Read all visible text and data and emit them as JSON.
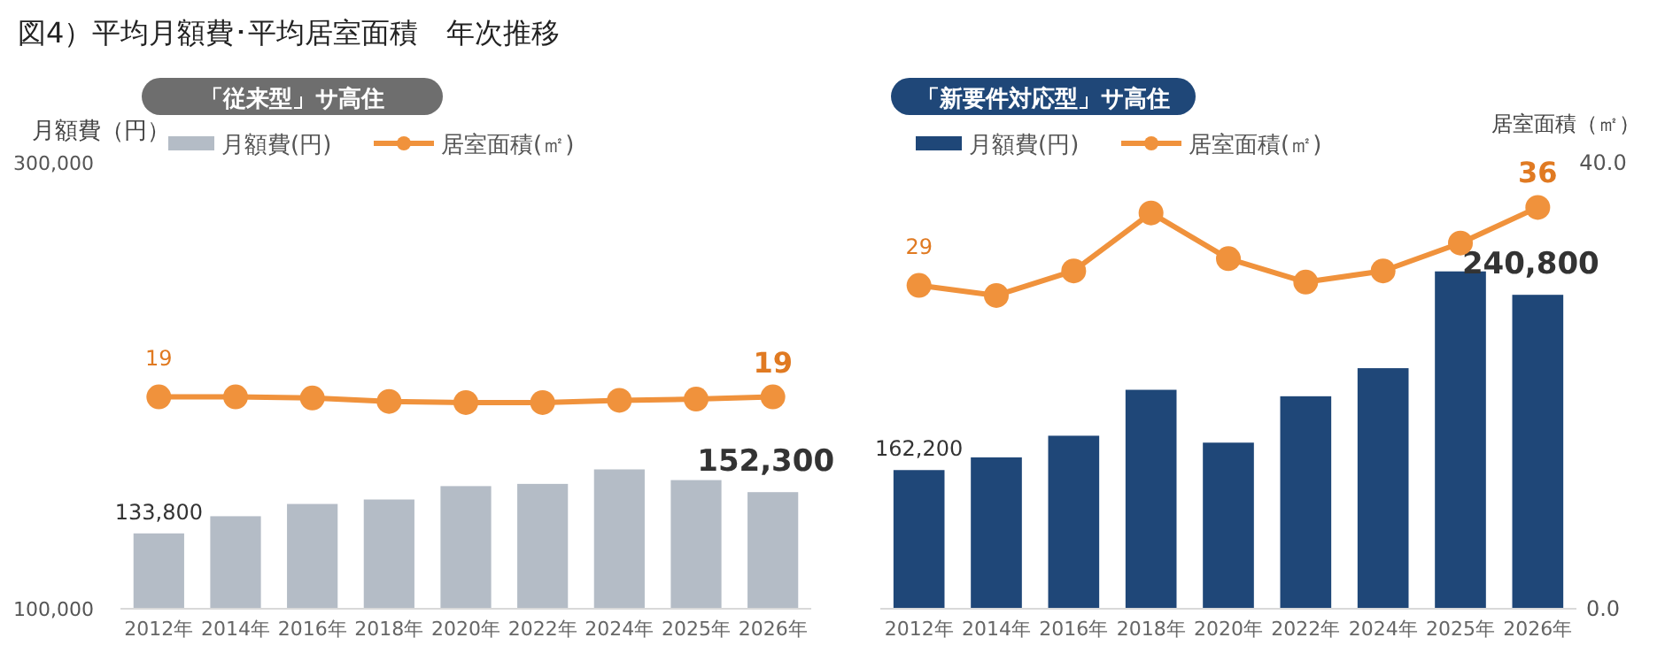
{
  "chart_data": [
    {
      "type": "bar",
      "title": "図4）平均月額費･平均居室面積　年次推移",
      "subtitle": "「従来型」サ高住",
      "ylabel": "月額費（円）",
      "categories": [
        "2012年",
        "2014年",
        "2016年",
        "2018年",
        "2020年",
        "2022年",
        "2024年",
        "2025年",
        "2026年"
      ],
      "ylim": [
        100000,
        300000
      ],
      "yticks": [
        {
          "value": 100000,
          "label": "100,000"
        },
        {
          "value": 300000,
          "label": "300,000"
        }
      ],
      "y2lim": [
        0,
        40
      ],
      "legend": "top",
      "marker": "circle",
      "series": [
        {
          "name": "月額費(円)",
          "type": "bar",
          "color": "#b4bcc6",
          "values": [
            133800,
            141500,
            147000,
            149000,
            155000,
            156000,
            162500,
            157700,
            152300
          ],
          "value_labels": [
            "133,800",
            null,
            null,
            null,
            null,
            null,
            null,
            null,
            "152,300"
          ]
        },
        {
          "name": "居室面積(㎡)",
          "type": "line",
          "axis": "y2",
          "color": "#f0923c",
          "values": [
            19,
            19.0,
            18.9,
            18.6,
            18.5,
            18.5,
            18.7,
            18.8,
            19
          ],
          "value_labels": [
            "19",
            null,
            null,
            null,
            null,
            null,
            null,
            null,
            "19"
          ]
        }
      ]
    },
    {
      "type": "bar",
      "subtitle": "「新要件対応型」サ高住",
      "y2label": "居室面積（㎡）",
      "categories": [
        "2012年",
        "2014年",
        "2016年",
        "2018年",
        "2020年",
        "2022年",
        "2024年",
        "2025年",
        "2026年"
      ],
      "ylim": [
        100000,
        300000
      ],
      "y2lim": [
        0,
        40
      ],
      "y2ticks": [
        {
          "value": 0,
          "label": "0.0"
        },
        {
          "value": 40,
          "label": "40.0"
        }
      ],
      "tick_labels": [
        "x",
        "y2"
      ],
      "legend": "top",
      "marker": "circle",
      "series": [
        {
          "name": "月額費(円)",
          "type": "bar",
          "color": "#1f4778",
          "values": [
            162200,
            167900,
            177600,
            198200,
            174500,
            195300,
            207900,
            251300,
            240800
          ],
          "value_labels": [
            "162,200",
            null,
            null,
            null,
            null,
            null,
            null,
            null,
            "240,800"
          ]
        },
        {
          "name": "居室面積(㎡)",
          "type": "line",
          "axis": "y2",
          "color": "#f0923c",
          "values": [
            29,
            28.1,
            30.3,
            35.5,
            31.4,
            29.3,
            30.3,
            32.8,
            36
          ],
          "value_labels": [
            "29",
            null,
            null,
            null,
            null,
            null,
            null,
            null,
            "36"
          ]
        }
      ]
    }
  ]
}
